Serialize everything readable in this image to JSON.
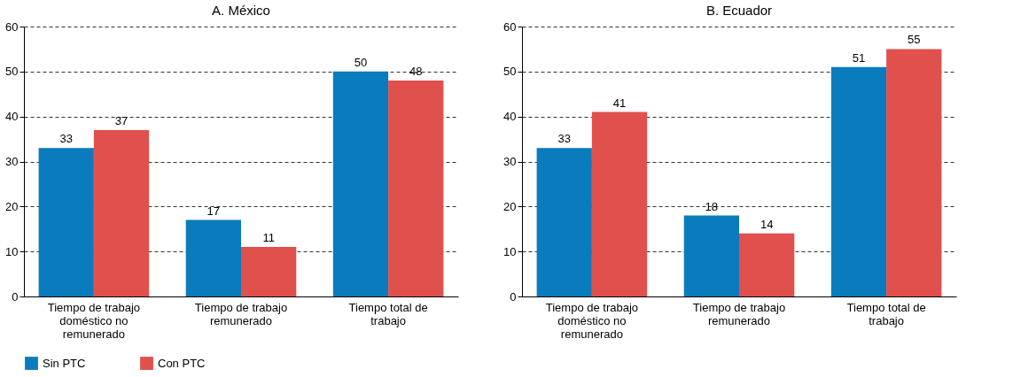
{
  "chart_data": [
    {
      "type": "bar",
      "title": "A. México",
      "categories": [
        "Tiempo de trabajo doméstico no remunerado",
        "Tiempo de trabajo remunerado",
        "Tiempo total de trabajo"
      ],
      "series": [
        {
          "name": "Sin PTC",
          "color": "#0a7bbd",
          "values": [
            33,
            17,
            50
          ]
        },
        {
          "name": "Con PTC",
          "color": "#e0504d",
          "values": [
            37,
            11,
            48
          ]
        }
      ],
      "ylim": [
        0,
        60
      ],
      "yticks": [
        0,
        10,
        20,
        30,
        40,
        50,
        60
      ],
      "grid": "y",
      "legend": "bottom",
      "data_labels": true
    },
    {
      "type": "bar",
      "title": "B. Ecuador",
      "categories": [
        "Tiempo de trabajo doméstico no remunerado",
        "Tiempo de trabajo remunerado",
        "Tiempo total de trabajo"
      ],
      "series": [
        {
          "name": "Sin PTC",
          "color": "#0a7bbd",
          "values": [
            33,
            18,
            51
          ]
        },
        {
          "name": "Con PTC",
          "color": "#e0504d",
          "values": [
            41,
            14,
            55
          ]
        }
      ],
      "ylim": [
        0,
        60
      ],
      "yticks": [
        0,
        10,
        20,
        30,
        40,
        50,
        60
      ],
      "grid": "y",
      "legend": "bottom",
      "data_labels": true
    }
  ]
}
